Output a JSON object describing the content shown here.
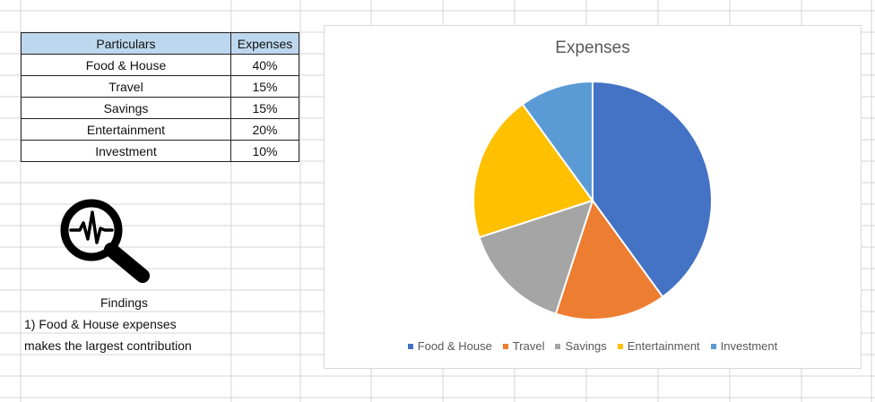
{
  "table": {
    "headers": [
      "Particulars",
      "Expenses"
    ],
    "rows": [
      [
        "Food & House",
        "40%"
      ],
      [
        "Travel",
        "15%"
      ],
      [
        "Savings",
        "15%"
      ],
      [
        "Entertainment",
        "20%"
      ],
      [
        "Investment",
        "10%"
      ]
    ]
  },
  "findings": {
    "title": "Findings",
    "line1": "1) Food & House expenses",
    "line2": "makes the largest contribution"
  },
  "icons": {
    "findings_icon": "magnifier-heartbeat-icon"
  },
  "chart_data": {
    "type": "pie",
    "title": "Expenses",
    "categories": [
      "Food & House",
      "Travel",
      "Savings",
      "Entertainment",
      "Investment"
    ],
    "values": [
      40,
      15,
      15,
      20,
      10
    ],
    "unit": "%",
    "colors": [
      "#4472c4",
      "#ed7d31",
      "#a5a5a5",
      "#ffc000",
      "#5b9bd5"
    ],
    "legend": "bottom"
  }
}
